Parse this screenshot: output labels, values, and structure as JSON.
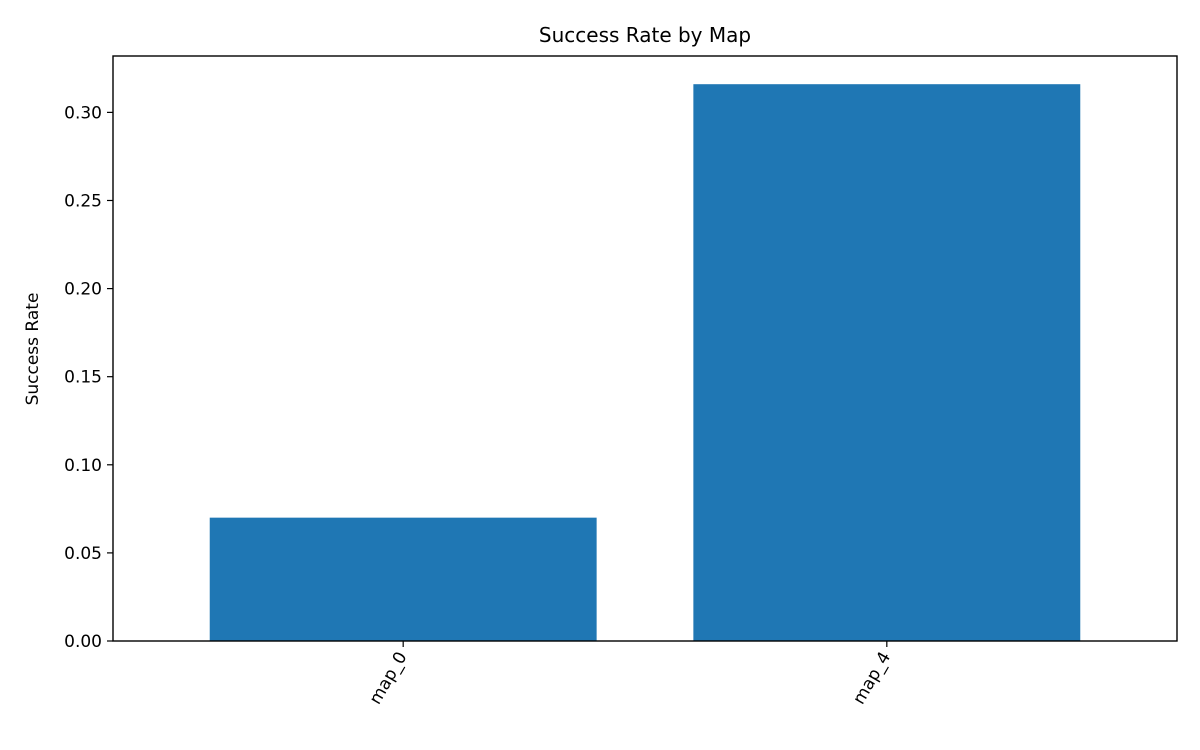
{
  "chart_data": {
    "type": "bar",
    "title": "Success Rate by Map",
    "xlabel": "",
    "ylabel": "Success Rate",
    "categories": [
      "map_0",
      "map_4"
    ],
    "values": [
      0.07,
      0.316
    ],
    "ylim": [
      0,
      0.332
    ],
    "yticks": [
      0.0,
      0.05,
      0.1,
      0.15,
      0.2,
      0.25,
      0.3
    ],
    "ytick_labels": [
      "0.00",
      "0.05",
      "0.10",
      "0.15",
      "0.20",
      "0.25",
      "0.30"
    ],
    "xtick_rotation_deg": 60,
    "grid": false,
    "legend": "none",
    "bar_color": "#1f77b4",
    "axis_color": "#000000"
  }
}
